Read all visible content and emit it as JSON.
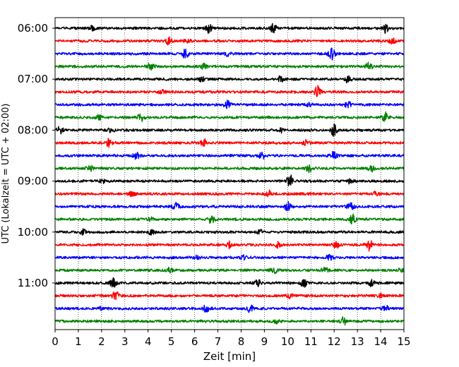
{
  "chart_data": {
    "type": "line",
    "title": "",
    "xlabel": "Zeit  [min]",
    "ylabel": "UTC (Lokalzeit = UTC + 02:00)",
    "xlim": [
      0,
      15
    ],
    "x_ticks": [
      "0",
      "1",
      "2",
      "3",
      "4",
      "5",
      "6",
      "7",
      "8",
      "9",
      "10",
      "11",
      "12",
      "13",
      "14",
      "15"
    ],
    "y_ticks": [
      "06:00",
      "07:00",
      "08:00",
      "09:00",
      "10:00",
      "11:00"
    ],
    "grid": "vertical dotted",
    "trace_interval_min": 15,
    "colors": [
      "#000000",
      "#ff0000",
      "#0000ff",
      "#008000"
    ],
    "series": [
      {
        "time": "06:00",
        "color": "#000000",
        "events": [
          [
            6.6,
            1.0
          ],
          [
            9.4,
            1.0
          ],
          [
            14.2,
            0.9
          ],
          [
            1.6,
            0.4
          ]
        ]
      },
      {
        "time": "06:15",
        "color": "#ff0000",
        "events": [
          [
            4.9,
            0.7
          ],
          [
            5.7,
            0.5
          ],
          [
            14.5,
            0.6
          ]
        ]
      },
      {
        "time": "06:30",
        "color": "#0000ff",
        "events": [
          [
            5.6,
            0.9
          ],
          [
            11.9,
            1.2
          ],
          [
            7.4,
            0.4
          ]
        ]
      },
      {
        "time": "06:45",
        "color": "#008000",
        "events": [
          [
            4.1,
            0.6
          ],
          [
            6.4,
            0.5
          ],
          [
            13.5,
            0.7
          ]
        ]
      },
      {
        "time": "07:00",
        "color": "#000000",
        "events": [
          [
            6.3,
            0.4
          ],
          [
            9.7,
            0.5
          ],
          [
            12.6,
            0.7
          ]
        ]
      },
      {
        "time": "07:15",
        "color": "#ff0000",
        "events": [
          [
            11.3,
            1.3
          ],
          [
            4.6,
            0.3
          ]
        ]
      },
      {
        "time": "07:30",
        "color": "#0000ff",
        "events": [
          [
            7.4,
            0.7
          ],
          [
            12.6,
            0.6
          ],
          [
            10.9,
            0.4
          ]
        ]
      },
      {
        "time": "07:45",
        "color": "#008000",
        "events": [
          [
            3.7,
            0.7
          ],
          [
            14.2,
            1.0
          ],
          [
            1.9,
            0.4
          ]
        ]
      },
      {
        "time": "08:00",
        "color": "#000000",
        "events": [
          [
            0.2,
            0.7
          ],
          [
            2.4,
            0.4
          ],
          [
            9.7,
            0.5
          ],
          [
            12.0,
            1.2
          ]
        ]
      },
      {
        "time": "08:15",
        "color": "#ff0000",
        "events": [
          [
            2.3,
            0.7
          ],
          [
            6.4,
            0.7
          ],
          [
            10.8,
            0.5
          ]
        ]
      },
      {
        "time": "08:30",
        "color": "#0000ff",
        "events": [
          [
            3.5,
            0.7
          ],
          [
            8.9,
            0.7
          ],
          [
            12.0,
            0.8
          ]
        ]
      },
      {
        "time": "08:45",
        "color": "#008000",
        "events": [
          [
            1.5,
            0.5
          ],
          [
            10.9,
            0.7
          ],
          [
            13.6,
            0.6
          ]
        ]
      },
      {
        "time": "09:00",
        "color": "#000000",
        "events": [
          [
            10.1,
            1.2
          ],
          [
            12.7,
            0.5
          ],
          [
            2.0,
            0.4
          ]
        ]
      },
      {
        "time": "09:15",
        "color": "#ff0000",
        "events": [
          [
            3.3,
            0.4
          ],
          [
            9.2,
            0.6
          ],
          [
            13.8,
            0.4
          ]
        ]
      },
      {
        "time": "09:30",
        "color": "#0000ff",
        "events": [
          [
            5.2,
            0.7
          ],
          [
            10.0,
            0.9
          ],
          [
            12.7,
            0.9
          ]
        ]
      },
      {
        "time": "09:45",
        "color": "#008000",
        "events": [
          [
            6.7,
            0.8
          ],
          [
            12.8,
            0.9
          ],
          [
            4.1,
            0.3
          ]
        ]
      },
      {
        "time": "10:00",
        "color": "#000000",
        "events": [
          [
            1.2,
            0.6
          ],
          [
            4.1,
            0.5
          ],
          [
            8.8,
            0.4
          ]
        ]
      },
      {
        "time": "10:15",
        "color": "#ff0000",
        "events": [
          [
            7.5,
            0.7
          ],
          [
            9.6,
            0.5
          ],
          [
            12.1,
            0.6
          ],
          [
            13.5,
            1.1
          ]
        ]
      },
      {
        "time": "10:30",
        "color": "#0000ff",
        "events": [
          [
            8.1,
            0.4
          ],
          [
            11.8,
            0.4
          ],
          [
            6.1,
            0.3
          ]
        ]
      },
      {
        "time": "10:45",
        "color": "#008000",
        "events": [
          [
            4.9,
            0.6
          ],
          [
            9.4,
            0.6
          ],
          [
            11.6,
            0.6
          ],
          [
            14.9,
            0.5
          ]
        ]
      },
      {
        "time": "11:00",
        "color": "#000000",
        "events": [
          [
            2.5,
            0.9
          ],
          [
            8.7,
            0.8
          ],
          [
            10.7,
            0.7
          ],
          [
            13.6,
            0.7
          ]
        ]
      },
      {
        "time": "11:15",
        "color": "#ff0000",
        "events": [
          [
            2.6,
            1.1
          ],
          [
            10.1,
            0.5
          ],
          [
            14.0,
            0.4
          ]
        ]
      },
      {
        "time": "11:30",
        "color": "#0000ff",
        "events": [
          [
            6.5,
            0.7
          ],
          [
            8.4,
            0.8
          ],
          [
            14.2,
            0.5
          ],
          [
            1.9,
            0.3
          ]
        ]
      },
      {
        "time": "11:45",
        "color": "#008000",
        "events": [
          [
            12.4,
            0.7
          ],
          [
            9.5,
            0.3
          ]
        ]
      }
    ]
  }
}
